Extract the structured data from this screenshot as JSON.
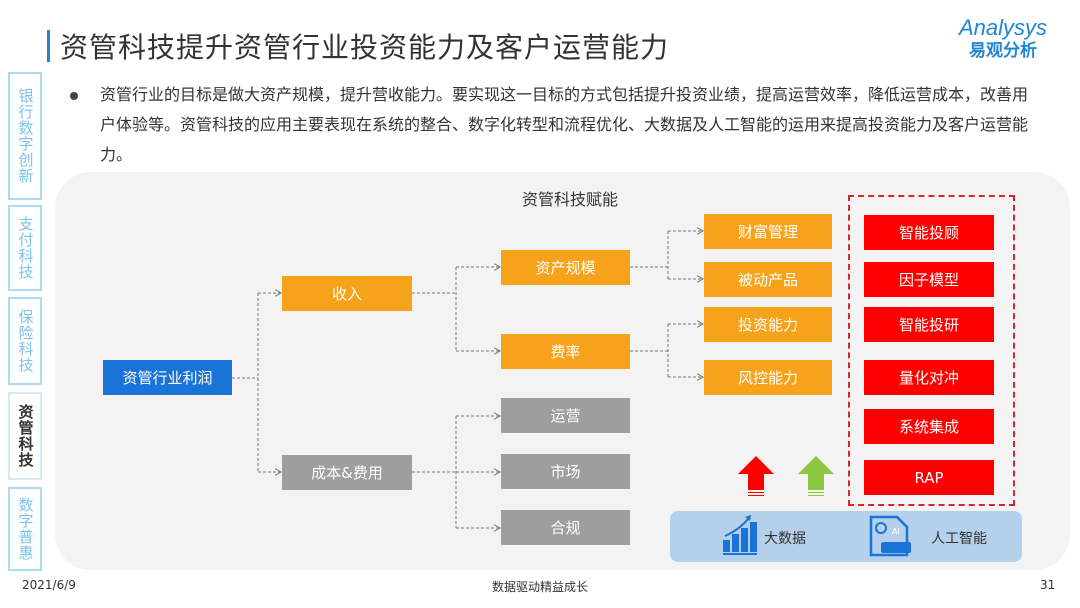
{
  "header": {
    "title": "资管科技提升资管行业投资能力及客户运营能力",
    "logo_en": "Analysys",
    "logo_cn": "易观分析"
  },
  "sidebar": {
    "items": [
      {
        "label": "银行数字创新",
        "active": false
      },
      {
        "label": "支付科技",
        "active": false
      },
      {
        "label": "保险科技",
        "active": false
      },
      {
        "label": "资管科技",
        "active": true
      },
      {
        "label": "数字普惠",
        "active": false
      }
    ]
  },
  "body": {
    "paragraph": "资管行业的目标是做大资产规模，提升营收能力。要实现这一目标的方式包括提升投资业绩，提高运营效率，降低运营成本，改善用户体验等。资管科技的应用主要表现在系统的整合、数字化转型和流程优化、大数据及人工智能的运用来提高投资能力及客户运营能力。"
  },
  "diagram": {
    "title": "资管科技赋能",
    "root": "资管行业利润",
    "level1": [
      "收入",
      "成本&费用"
    ],
    "level2_income": [
      "资产规模",
      "费率"
    ],
    "level2_cost": [
      "运营",
      "市场",
      "合规"
    ],
    "level3": [
      "财富管理",
      "被动产品",
      "投资能力",
      "风控能力"
    ],
    "tech": [
      "智能投顾",
      "因子模型",
      "智能投研",
      "量化对冲",
      "系统集成",
      "RAP"
    ],
    "foundation": {
      "bigdata": "大数据",
      "ai": "人工智能",
      "ai_badge": "AI"
    },
    "colors": {
      "orange": "#f7a21b",
      "gray": "#9e9e9e",
      "red": "#ff0000",
      "blue": "#1a73d6",
      "green": "#8dc63f"
    }
  },
  "footer": {
    "date": "2021/6/9",
    "slogan": "数据驱动精益成长",
    "page": "31"
  }
}
